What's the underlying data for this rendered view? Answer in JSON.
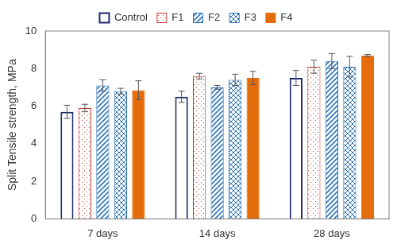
{
  "chart_data": {
    "type": "bar",
    "y_label": "Split Tensile strength, MPa",
    "categories": [
      "7 days",
      "14 days",
      "28 days"
    ],
    "series": [
      {
        "name": "Control",
        "color": "#1f2a6b",
        "values": [
          5.7,
          6.5,
          7.5
        ],
        "errors": [
          0.35,
          0.3,
          0.4
        ]
      },
      {
        "name": "F1",
        "color": "#c0392b",
        "values": [
          5.9,
          7.6,
          8.1
        ],
        "errors": [
          0.2,
          0.15,
          0.35
        ]
      },
      {
        "name": "F2",
        "color": "#2e75b6",
        "values": [
          7.1,
          7.0,
          8.4
        ],
        "errors": [
          0.3,
          0.1,
          0.4
        ]
      },
      {
        "name": "F3",
        "color": "#2e75b6",
        "values": [
          6.8,
          7.4,
          8.1
        ],
        "errors": [
          0.15,
          0.3,
          0.55
        ]
      },
      {
        "name": "F4",
        "color": "#e46c0a",
        "values": [
          6.85,
          7.5,
          8.7
        ],
        "errors": [
          0.5,
          0.35,
          0.05
        ]
      }
    ],
    "ylim": [
      0,
      10
    ],
    "yticks": [
      0,
      2,
      4,
      6,
      8,
      10
    ],
    "grid": false,
    "legend": "top"
  }
}
